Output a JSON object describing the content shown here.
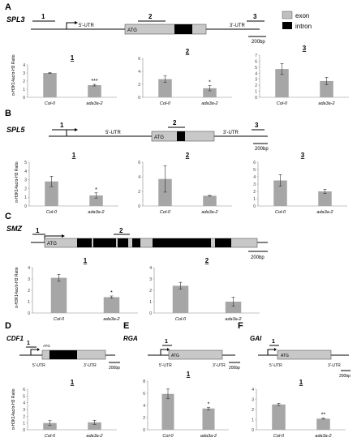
{
  "legend": [
    {
      "label": "exon",
      "color": "#bfbfbf"
    },
    {
      "label": "intron",
      "color": "#000000"
    }
  ],
  "colors": {
    "bar": "#a6a6a6",
    "exon": "#c8c8c8",
    "intron": "#000000",
    "axis": "#8c8c8c"
  },
  "labels": {
    "utr5": "5'-UTR",
    "utr3": "3'-UTR",
    "atg": "ATG",
    "scale": "200bp"
  },
  "panels": [
    {
      "letter": "A",
      "gene": "SPL3",
      "regions": [
        "1",
        "2",
        "3"
      ],
      "ylabel": "α-H3K14ac/α-H3 Ratio"
    },
    {
      "letter": "B",
      "gene": "SPL5",
      "regions": [
        "1",
        "2",
        "3"
      ],
      "ylabel": "α-H3K14ac/α-H3 Ratio"
    },
    {
      "letter": "C",
      "gene": "SMZ",
      "regions": [
        "1",
        "2"
      ],
      "ylabel": "α-H3K14ac/α-H3 Ratio"
    },
    {
      "letter": "D",
      "gene": "CDF1",
      "regions": [
        "1"
      ],
      "ylabel": "α-H3K14ac/α-H3 Ratio"
    },
    {
      "letter": "E",
      "gene": "RGA",
      "regions": [
        "1"
      ],
      "ylabel": ""
    },
    {
      "letter": "F",
      "gene": "GAI",
      "regions": [
        "1"
      ],
      "ylabel": ""
    }
  ],
  "chart_data": [
    {
      "type": "bar",
      "panel": "A",
      "title": "1",
      "categories": [
        "Col-0",
        "ada3a-2"
      ],
      "values": [
        3.0,
        1.5
      ],
      "errors": [
        0.05,
        0.1
      ],
      "sig": [
        "",
        "***"
      ],
      "ylim": [
        0,
        4
      ],
      "yticks": [
        "0",
        "1",
        "2",
        "3",
        "4"
      ]
    },
    {
      "type": "bar",
      "panel": "A",
      "title": "2",
      "categories": [
        "Col-0",
        "ada3a-2"
      ],
      "values": [
        2.8,
        1.4
      ],
      "errors": [
        0.5,
        0.4
      ],
      "sig": [
        "",
        "*"
      ],
      "ylim": [
        0,
        6
      ],
      "yticks": [
        "0",
        "2",
        "4",
        "6"
      ]
    },
    {
      "type": "bar",
      "panel": "A",
      "title": "3",
      "categories": [
        "Col-0",
        "ada3a-2"
      ],
      "values": [
        4.7,
        2.7
      ],
      "errors": [
        0.9,
        0.6
      ],
      "sig": [
        "",
        ""
      ],
      "ylim": [
        0,
        7
      ],
      "yticks": [
        "0",
        "1",
        "2",
        "3",
        "4",
        "5",
        "6",
        "7"
      ]
    },
    {
      "type": "bar",
      "panel": "B",
      "title": "1",
      "categories": [
        "Col-0",
        "ada3a-2"
      ],
      "values": [
        2.8,
        1.2
      ],
      "errors": [
        0.6,
        0.3
      ],
      "sig": [
        "",
        "*"
      ],
      "ylim": [
        0,
        5
      ],
      "yticks": [
        "0",
        "1",
        "2",
        "3",
        "4",
        "5"
      ]
    },
    {
      "type": "bar",
      "panel": "B",
      "title": "2",
      "categories": [
        "Col-0",
        "ada3a-2"
      ],
      "values": [
        3.7,
        1.4
      ],
      "errors": [
        1.8,
        0.05
      ],
      "sig": [
        "",
        ""
      ],
      "ylim": [
        0,
        6
      ],
      "yticks": [
        "0",
        "2",
        "4",
        "6"
      ]
    },
    {
      "type": "bar",
      "panel": "B",
      "title": "3",
      "categories": [
        "Col-0",
        "ada3a-2"
      ],
      "values": [
        3.5,
        2.0
      ],
      "errors": [
        0.8,
        0.3
      ],
      "sig": [
        "",
        ""
      ],
      "ylim": [
        0,
        6
      ],
      "yticks": [
        "0",
        "1",
        "2",
        "3",
        "4",
        "5",
        "6"
      ]
    },
    {
      "type": "bar",
      "panel": "C",
      "title": "1",
      "categories": [
        "Col-0",
        "ada3a-2"
      ],
      "values": [
        3.1,
        1.4
      ],
      "errors": [
        0.3,
        0.1
      ],
      "sig": [
        "",
        "*"
      ],
      "ylim": [
        0,
        4
      ],
      "yticks": [
        "0",
        "1",
        "2",
        "3",
        "4"
      ]
    },
    {
      "type": "bar",
      "panel": "C",
      "title": "2",
      "categories": [
        "Col-0",
        "ada3a-2"
      ],
      "values": [
        2.4,
        1.0
      ],
      "errors": [
        0.3,
        0.4
      ],
      "sig": [
        "",
        ""
      ],
      "ylim": [
        0,
        4
      ],
      "yticks": [
        "0",
        "1",
        "2",
        "3",
        "4"
      ]
    },
    {
      "type": "bar",
      "panel": "D",
      "title": "1",
      "categories": [
        "Col-0",
        "ada3a-2"
      ],
      "values": [
        1.0,
        1.1
      ],
      "errors": [
        0.35,
        0.3
      ],
      "sig": [
        "",
        ""
      ],
      "ylim": [
        0,
        6
      ],
      "yticks": [
        "0",
        "1",
        "2",
        "3",
        "4",
        "5",
        "6"
      ]
    },
    {
      "type": "bar",
      "panel": "E",
      "title": "1",
      "categories": [
        "Col-0",
        "ada3a-2"
      ],
      "values": [
        5.9,
        3.5
      ],
      "errors": [
        0.8,
        0.2
      ],
      "sig": [
        "",
        "*"
      ],
      "ylim": [
        0,
        8
      ],
      "yticks": [
        "0",
        "2",
        "4",
        "6",
        "8"
      ]
    },
    {
      "type": "bar",
      "panel": "F",
      "title": "1",
      "categories": [
        "Col-0",
        "ada3a-2"
      ],
      "values": [
        2.5,
        1.1
      ],
      "errors": [
        0.1,
        0.05
      ],
      "sig": [
        "",
        "**"
      ],
      "ylim": [
        0,
        4
      ],
      "yticks": [
        "0",
        "1",
        "2",
        "3",
        "4"
      ]
    }
  ]
}
